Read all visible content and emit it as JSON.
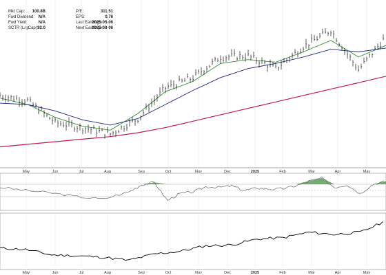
{
  "fundamentals": {
    "left": [
      {
        "label": "Mkt Cap:",
        "value": "100.8B"
      },
      {
        "label": "Fwd Dividend:",
        "value": "N/A"
      },
      {
        "label": "Fwd Yield:",
        "value": "N/A"
      },
      {
        "label": "SCTR (LrgCap):",
        "value": "92.0"
      }
    ],
    "right": [
      {
        "label": "P/E:",
        "value": "311.51"
      },
      {
        "label": "EPS:",
        "value": "0.76"
      },
      {
        "label": "Last Earnings:",
        "value": "2025-05-06"
      },
      {
        "label": "Next Earnings:",
        "value": "2025-08-06"
      }
    ]
  },
  "chart_data": [
    {
      "type": "line",
      "panel": "price",
      "x_ticks": [
        "May",
        "Jun",
        "Jul",
        "Aug",
        "Sep",
        "Oct",
        "Nov",
        "Dec",
        "2025",
        "Feb",
        "Mar",
        "Apr",
        "May"
      ],
      "x": [
        0,
        4,
        8,
        12,
        16,
        20,
        24,
        28,
        32,
        36,
        40,
        44,
        48,
        52,
        56
      ],
      "series": [
        {
          "name": "",
          "color": "#000000",
          "style": "ohlc-bars",
          "values": [
            52,
            48,
            31,
            27,
            22,
            34,
            58,
            66,
            82,
            83,
            73,
            90,
            103,
            72,
            98
          ]
        },
        {
          "name": "",
          "color": "#2e8b2e",
          "values": [
            50,
            45,
            35,
            28,
            25,
            38,
            55,
            63,
            77,
            80,
            78,
            86,
            95,
            82,
            91
          ]
        },
        {
          "name": "",
          "color": "#1a237e",
          "values": [
            46,
            45,
            40,
            33,
            29,
            34,
            45,
            56,
            66,
            73,
            77,
            82,
            88,
            86,
            89
          ]
        },
        {
          "name": "",
          "color": "#c2185b",
          "values": [
            12,
            14,
            16,
            18,
            20,
            23,
            27,
            32,
            37,
            42,
            47,
            52,
            57,
            62,
            67
          ]
        }
      ],
      "grid": true,
      "colors": {
        "price": "#000000",
        "sma_short": "#2e8b2e",
        "sma_mid": "#1a237e",
        "sma_long": "#c2185b"
      }
    },
    {
      "type": "area",
      "panel": "indicator",
      "x": [
        0,
        8,
        16,
        24,
        32,
        40,
        44,
        48,
        52,
        56,
        60,
        64,
        68,
        72,
        76,
        80,
        84,
        88,
        92,
        96,
        100,
        104,
        108,
        112,
        116,
        120
      ],
      "values": [
        10,
        0,
        -8,
        -20,
        -28,
        -5,
        18,
        26,
        -32,
        -10,
        -5,
        12,
        10,
        15,
        0,
        8,
        4,
        6,
        15,
        30,
        40,
        10,
        18,
        -10,
        20,
        30
      ],
      "overbought": 20,
      "oversold": -20,
      "colors": {
        "line": "#666666",
        "fill": "#5d9b5d"
      }
    },
    {
      "type": "line",
      "panel": "relative-strength",
      "x": [
        0,
        8,
        16,
        24,
        32,
        40,
        48,
        56,
        64,
        72,
        80,
        88,
        96,
        104,
        112,
        120
      ],
      "values": [
        35,
        32,
        20,
        18,
        15,
        8,
        22,
        28,
        40,
        42,
        55,
        58,
        70,
        65,
        70,
        95
      ],
      "colors": {
        "line": "#000000"
      }
    }
  ]
}
